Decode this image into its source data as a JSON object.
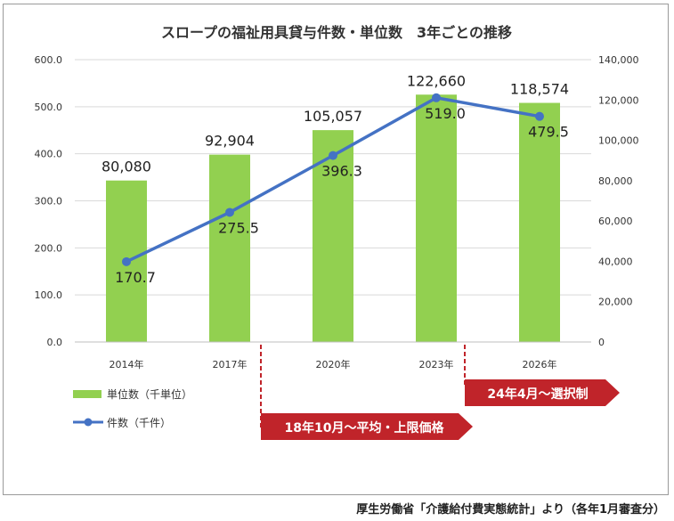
{
  "chart_data": {
    "type": "bar",
    "title": "スロープの福祉用具貸与件数・単位数　3年ごとの推移",
    "categories": [
      "2014年",
      "2017年",
      "2020年",
      "2023年",
      "2026年"
    ],
    "series": [
      {
        "name": "単位数（千単位）",
        "type": "bar",
        "axis": "right",
        "values": [
          80080,
          92904,
          105057,
          122660,
          118574
        ],
        "labels": [
          "80,080",
          "92,904",
          "105,057",
          "122,660",
          "118,574"
        ],
        "color": "#92d050"
      },
      {
        "name": "件数（千件）",
        "type": "line",
        "axis": "left",
        "values": [
          170.7,
          275.5,
          396.3,
          519.0,
          479.5
        ],
        "labels": [
          "170.7",
          "275.5",
          "396.3",
          "519.0",
          "479.5"
        ],
        "color": "#4472c4"
      }
    ],
    "left_axis": {
      "ylim": [
        0,
        600
      ],
      "ticks": [
        "0.0",
        "100.0",
        "200.0",
        "300.0",
        "400.0",
        "500.0",
        "600.0"
      ]
    },
    "right_axis": {
      "ylim": [
        0,
        140000
      ],
      "ticks": [
        "0",
        "20,000",
        "40,000",
        "60,000",
        "80,000",
        "100,000",
        "120,000",
        "140,000"
      ]
    },
    "grid": true,
    "legend": "bottom-left",
    "annotations": [
      "18年10月～平均・上限価格",
      "24年4月～選択制"
    ],
    "annotation_color": "#c0242a"
  },
  "source_note": "厚生労働省「介護給付費実態統計」より（各年1月審査分）"
}
